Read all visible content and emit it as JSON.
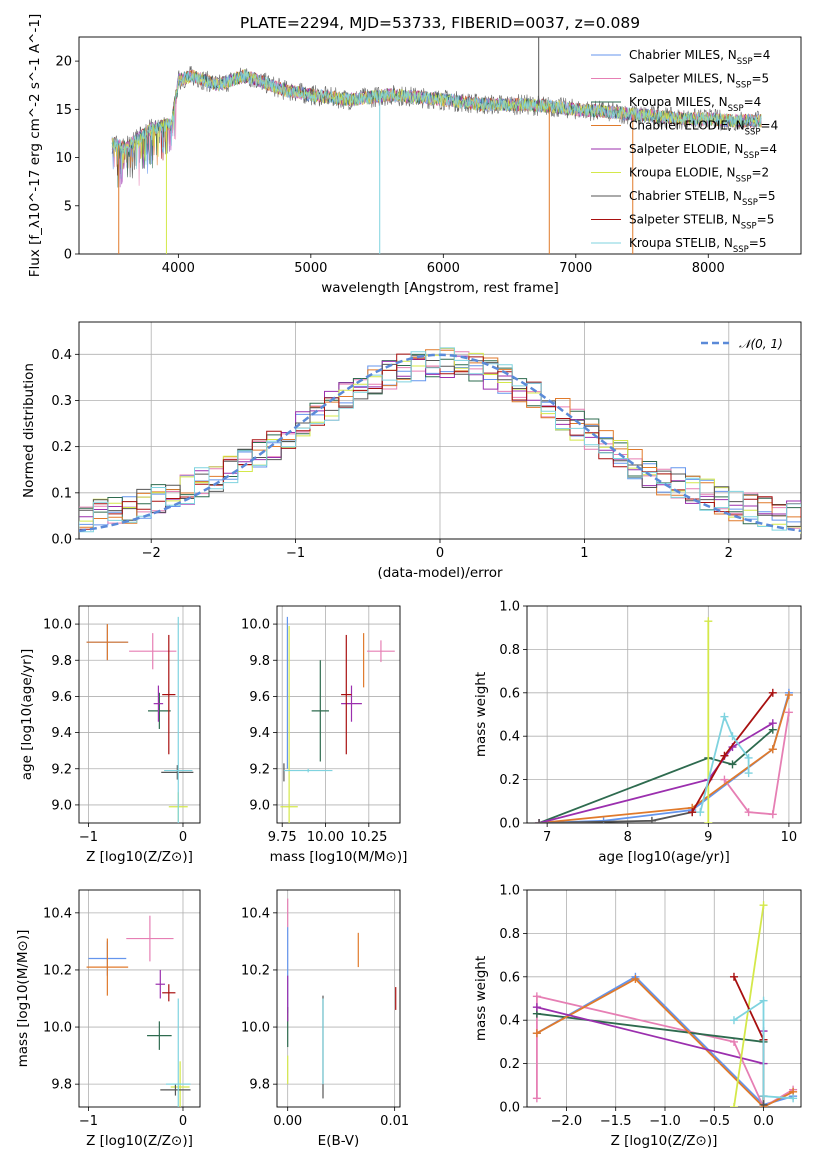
{
  "title": "PLATE=2294, MJD=53733, FIBERID=0037, z=0.089",
  "colors": {
    "Chabrier MILES": "#6495ed",
    "Salpeter MILES": "#e67fb4",
    "Kroupa MILES": "#2e6b4f",
    "Chabrier ELODIE": "#e07a2b",
    "Salpeter ELODIE": "#9b2fae",
    "Kroupa ELODIE": "#d4e84a",
    "Chabrier STELIB": "#555555",
    "Salpeter STELIB": "#a81010",
    "Kroupa STELIB": "#7fd3df"
  },
  "chart_data": [
    {
      "id": "spectrum",
      "type": "line",
      "title": "PLATE=2294, MJD=53733, FIBERID=0037, z=0.089",
      "xlabel": "wavelength [Angstrom, rest frame]",
      "ylabel": "Flux [f_λ10^-17 erg cm^-2 s^-1 A^-1]",
      "xlim": [
        3250,
        8700
      ],
      "ylim": [
        0,
        22.5
      ],
      "xticks": [
        4000,
        5000,
        6000,
        7000,
        8000
      ],
      "yticks": [
        0,
        5,
        10,
        15,
        20
      ],
      "legend_position": "top-right",
      "legend": [
        "Chabrier MILES, N_SSP=4",
        "Salpeter MILES, N_SSP=5",
        "Kroupa MILES, N_SSP=4",
        "Chabrier ELODIE, N_SSP=4",
        "Salpeter ELODIE, N_SSP=4",
        "Kroupa ELODIE, N_SSP=2",
        "Chabrier STELIB, N_SSP=5",
        "Salpeter STELIB, N_SSP=5",
        "Kroupa STELIB, N_SSP=5"
      ],
      "continuum": {
        "x": [
          3500,
          3600,
          3800,
          3950,
          4000,
          4100,
          4300,
          4500,
          4800,
          5000,
          5300,
          5600,
          6000,
          6300,
          6600,
          6800,
          7000,
          7200,
          7400,
          7600,
          7800,
          8000,
          8200,
          8400
        ],
        "y": [
          11.5,
          11,
          13,
          13.5,
          18,
          18.5,
          17.5,
          18.5,
          17,
          16.5,
          16,
          16.5,
          16,
          15.5,
          15.5,
          15.3,
          15,
          14.8,
          14.5,
          14.3,
          14,
          14,
          13.8,
          13.8
        ]
      },
      "features": [
        {
          "x": 3550,
          "y": 0,
          "series": "Chabrier ELODIE"
        },
        {
          "x": 3910,
          "y": 0,
          "series": "Kroupa ELODIE"
        },
        {
          "x": 5520,
          "y": 0,
          "series": "Kroupa STELIB"
        },
        {
          "x": 6800,
          "y": 0,
          "series": "Chabrier ELODIE"
        },
        {
          "x": 7430,
          "y": 0,
          "series": "Chabrier ELODIE"
        },
        {
          "x": 6720,
          "y": 22.5,
          "series": "Chabrier STELIB"
        }
      ]
    },
    {
      "id": "residuals",
      "type": "histogram",
      "xlabel": "(data-model)/error",
      "ylabel": "Normed distribution",
      "xlim": [
        -2.5,
        2.5
      ],
      "ylim": [
        0,
        0.47
      ],
      "xticks": [
        -2,
        -1,
        0,
        1,
        2
      ],
      "yticks": [
        0.0,
        0.1,
        0.2,
        0.3,
        0.4
      ],
      "legend": [
        "N(0,1)"
      ],
      "legend_position": "top-right",
      "bin_width": 0.1,
      "envelope": [
        0.02,
        0.06,
        0.12,
        0.22,
        0.32,
        0.37,
        0.37,
        0.32,
        0.22,
        0.12,
        0.06,
        0.02
      ],
      "gaussian": {
        "mean": 0,
        "sigma": 1
      }
    },
    {
      "id": "age_vs_Z",
      "type": "errorbar",
      "xlabel": "Z [log10(Z/Z⊙)]",
      "ylabel": "age [log10(age/yr)]",
      "xlim": [
        -1.1,
        0.18
      ],
      "ylim": [
        8.9,
        10.1
      ],
      "xticks": [
        -1,
        0
      ],
      "yticks": [
        9.0,
        9.2,
        9.4,
        9.6,
        9.8,
        10.0
      ],
      "points": [
        {
          "series": "Chabrier MILES",
          "x": -0.8,
          "y": 9.9,
          "xerr": 0.22,
          "yerr": 0.1
        },
        {
          "series": "Salpeter MILES",
          "x": -0.32,
          "y": 9.85,
          "xerr": 0.25,
          "yerr": 0.1
        },
        {
          "series": "Kroupa MILES",
          "x": -0.25,
          "y": 9.52,
          "xerr": 0.12,
          "yerr": 0.1
        },
        {
          "series": "Chabrier ELODIE",
          "x": -0.8,
          "y": 9.9,
          "xerr": 0.22,
          "yerr": 0.1
        },
        {
          "series": "Salpeter ELODIE",
          "x": -0.26,
          "y": 9.56,
          "xerr": 0.05,
          "yerr": 0.1
        },
        {
          "series": "Kroupa ELODIE",
          "x": -0.05,
          "y": 8.99,
          "xerr": 0.1,
          "yerr": 0.08
        },
        {
          "series": "Chabrier STELIB",
          "x": -0.06,
          "y": 9.18,
          "xerr": 0.17,
          "yerr": 0.04
        },
        {
          "series": "Salpeter STELIB",
          "x": -0.15,
          "y": 9.61,
          "xerr": 0.07,
          "yerr": 0.33
        },
        {
          "series": "Kroupa STELIB",
          "x": -0.05,
          "y": 9.19,
          "xerr": 0.15,
          "yerr": 0.85
        }
      ]
    },
    {
      "id": "age_vs_mass",
      "type": "errorbar",
      "xlabel": "mass [log10(M/M⊙)]",
      "ylabel": "",
      "xlim": [
        9.72,
        10.43
      ],
      "ylim": [
        8.9,
        10.1
      ],
      "xticks": [
        9.75,
        10.0,
        10.25
      ],
      "xticklabels": [
        "9.75",
        "10.00",
        "10.25"
      ],
      "yticks": [
        9.0,
        9.2,
        9.4,
        9.6,
        9.8,
        10.0
      ],
      "points": [
        {
          "series": "Chabrier MILES",
          "x": 9.78,
          "y": 9.62,
          "xerr": 0.0,
          "yerr": 0.42
        },
        {
          "series": "Salpeter MILES",
          "x": 10.32,
          "y": 9.85,
          "xerr": 0.08,
          "yerr": 0.06
        },
        {
          "series": "Kroupa MILES",
          "x": 9.97,
          "y": 9.52,
          "xerr": 0.05,
          "yerr": 0.28
        },
        {
          "series": "Chabrier ELODIE",
          "x": 10.22,
          "y": 9.8,
          "xerr": 0.0,
          "yerr": 0.15
        },
        {
          "series": "Salpeter ELODIE",
          "x": 10.15,
          "y": 9.56,
          "xerr": 0.06,
          "yerr": 0.1
        },
        {
          "series": "Kroupa ELODIE",
          "x": 9.79,
          "y": 8.99,
          "xerr": 0.05,
          "yerr": 1.0
        },
        {
          "series": "Chabrier STELIB",
          "x": 9.76,
          "y": 9.18,
          "xerr": 0.0,
          "yerr": 0.05
        },
        {
          "series": "Salpeter STELIB",
          "x": 10.12,
          "y": 9.61,
          "xerr": 0.03,
          "yerr": 0.33
        },
        {
          "series": "Kroupa STELIB",
          "x": 9.9,
          "y": 9.19,
          "xerr": 0.14,
          "yerr": 0.01
        }
      ]
    },
    {
      "id": "weight_vs_age",
      "type": "line",
      "xlabel": "age [log10(age/yr)]",
      "ylabel": "mass weight",
      "xlim": [
        6.75,
        10.15
      ],
      "ylim": [
        0,
        1
      ],
      "xticks": [
        7,
        8,
        9,
        10
      ],
      "yticks": [
        0.0,
        0.2,
        0.4,
        0.6,
        0.8,
        1.0
      ],
      "series": [
        {
          "name": "Chabrier MILES",
          "x": [
            6.9,
            7.7,
            8.8,
            9.8,
            10.0
          ],
          "y": [
            0.0,
            0.01,
            0.06,
            0.34,
            0.6
          ]
        },
        {
          "name": "Salpeter MILES",
          "x": [
            9.2,
            9.5,
            9.8,
            10.0
          ],
          "y": [
            0.2,
            0.05,
            0.04,
            0.51
          ]
        },
        {
          "name": "Kroupa MILES",
          "x": [
            6.9,
            9.0,
            9.3,
            9.8
          ],
          "y": [
            0.0,
            0.3,
            0.27,
            0.43
          ]
        },
        {
          "name": "Chabrier ELODIE",
          "x": [
            6.9,
            8.8,
            9.8,
            10.0
          ],
          "y": [
            0.0,
            0.07,
            0.34,
            0.59
          ]
        },
        {
          "name": "Salpeter ELODIE",
          "x": [
            6.9,
            9.0,
            9.3,
            9.8
          ],
          "y": [
            0.0,
            0.2,
            0.35,
            0.46
          ]
        },
        {
          "name": "Kroupa ELODIE",
          "x": [
            9.0,
            9.0
          ],
          "y": [
            0.0,
            0.93
          ]
        },
        {
          "name": "Chabrier STELIB",
          "x": [
            6.9,
            8.3,
            8.8
          ],
          "y": [
            0.0,
            0.01,
            0.05
          ]
        },
        {
          "name": "Salpeter STELIB",
          "x": [
            8.8,
            9.2,
            9.8
          ],
          "y": [
            0.05,
            0.31,
            0.6
          ]
        },
        {
          "name": "Kroupa STELIB",
          "x": [
            8.9,
            9.2,
            9.3,
            9.5,
            9.5
          ],
          "y": [
            0.05,
            0.49,
            0.4,
            0.3,
            0.23
          ]
        }
      ]
    },
    {
      "id": "mass_vs_Z",
      "type": "errorbar",
      "xlabel": "Z [log10(Z/Z⊙)]",
      "ylabel": "mass [log10(M/M⊙)]",
      "xlim": [
        -1.1,
        0.18
      ],
      "ylim": [
        9.72,
        10.48
      ],
      "xticks": [
        -1,
        0
      ],
      "yticks": [
        9.8,
        10.0,
        10.2,
        10.4
      ],
      "points": [
        {
          "series": "Chabrier MILES",
          "x": -0.8,
          "y": 10.24,
          "xerr": 0.2,
          "yerr": 0.06
        },
        {
          "series": "Salpeter MILES",
          "x": -0.35,
          "y": 10.31,
          "xerr": 0.25,
          "yerr": 0.08
        },
        {
          "series": "Kroupa MILES",
          "x": -0.25,
          "y": 9.97,
          "xerr": 0.13,
          "yerr": 0.05
        },
        {
          "series": "Chabrier ELODIE",
          "x": -0.8,
          "y": 10.21,
          "xerr": 0.22,
          "yerr": 0.1
        },
        {
          "series": "Salpeter ELODIE",
          "x": -0.24,
          "y": 10.15,
          "xerr": 0.05,
          "yerr": 0.05
        },
        {
          "series": "Kroupa ELODIE",
          "x": -0.03,
          "y": 9.79,
          "xerr": 0.1,
          "yerr": 0.09
        },
        {
          "series": "Chabrier STELIB",
          "x": -0.08,
          "y": 9.78,
          "xerr": 0.16,
          "yerr": 0.02
        },
        {
          "series": "Salpeter STELIB",
          "x": -0.15,
          "y": 10.12,
          "xerr": 0.07,
          "yerr": 0.03
        },
        {
          "series": "Kroupa STELIB",
          "x": -0.05,
          "y": 9.8,
          "xerr": 0.13,
          "yerr": 0.3
        }
      ]
    },
    {
      "id": "mass_vs_ebv",
      "type": "errorbar",
      "xlabel": "E(B-V)",
      "ylabel": "",
      "xlim": [
        -0.001,
        0.0105
      ],
      "ylim": [
        9.72,
        10.48
      ],
      "xticks": [
        0.0,
        0.01
      ],
      "xticklabels": [
        "0.00",
        "0.01"
      ],
      "yticks": [
        9.8,
        10.0,
        10.2,
        10.4
      ],
      "points": [
        {
          "series": "Chabrier MILES",
          "x": 0.0,
          "y": 10.2,
          "xerr": 0,
          "yerr": 0.15
        },
        {
          "series": "Salpeter MILES",
          "x": 0.0,
          "y": 10.4,
          "xerr": 0,
          "yerr": 0.05
        },
        {
          "series": "Kroupa MILES",
          "x": 0.0,
          "y": 10.0,
          "xerr": 0,
          "yerr": 0.07
        },
        {
          "series": "Chabrier ELODIE",
          "x": 0.0066,
          "y": 10.27,
          "xerr": 0,
          "yerr": 0.06
        },
        {
          "series": "Salpeter ELODIE",
          "x": 0.0,
          "y": 10.1,
          "xerr": 0,
          "yerr": 0.08
        },
        {
          "series": "Kroupa ELODIE",
          "x": 0.0,
          "y": 9.85,
          "xerr": 0,
          "yerr": 0.05
        },
        {
          "series": "Chabrier STELIB",
          "x": 0.0033,
          "y": 9.93,
          "xerr": 0,
          "yerr": 0.18
        },
        {
          "series": "Salpeter STELIB",
          "x": 0.0101,
          "y": 10.1,
          "xerr": 0,
          "yerr": 0.04
        },
        {
          "series": "Kroupa STELIB",
          "x": 0.0033,
          "y": 9.95,
          "xerr": 0,
          "yerr": 0.15
        }
      ]
    },
    {
      "id": "weight_vs_Z",
      "type": "line",
      "xlabel": "Z [log10(Z/Z⊙)]",
      "ylabel": "mass weight",
      "xlim": [
        -2.4,
        0.38
      ],
      "ylim": [
        0,
        1
      ],
      "xticks": [
        -2.0,
        -1.5,
        -1.0,
        -0.5,
        0.0
      ],
      "xticklabels": [
        "−2.0",
        "−1.5",
        "−1.0",
        "−0.5",
        "0.0"
      ],
      "yticks": [
        0.0,
        0.2,
        0.4,
        0.6,
        0.8,
        1.0
      ],
      "series": [
        {
          "name": "Chabrier MILES",
          "x": [
            -2.3,
            -1.3,
            0.0,
            0.3
          ],
          "y": [
            0.34,
            0.6,
            0.01,
            0.05
          ]
        },
        {
          "name": "Salpeter MILES",
          "x": [
            -2.3,
            -2.3,
            -0.3,
            0.0,
            0.3
          ],
          "y": [
            0.04,
            0.51,
            0.3,
            0.0,
            0.08
          ]
        },
        {
          "name": "Kroupa MILES",
          "x": [
            -2.3,
            0.0
          ],
          "y": [
            0.43,
            0.3
          ]
        },
        {
          "name": "Chabrier ELODIE",
          "x": [
            -2.3,
            -1.3,
            0.0,
            0.3
          ],
          "y": [
            0.34,
            0.59,
            0.0,
            0.07
          ]
        },
        {
          "name": "Salpeter ELODIE",
          "x": [
            -2.3,
            0.0,
            0.0
          ],
          "y": [
            0.46,
            0.2,
            0.35
          ]
        },
        {
          "name": "Kroupa ELODIE",
          "x": [
            -0.3,
            0.0
          ],
          "y": [
            0.0,
            0.93
          ]
        },
        {
          "name": "Chabrier STELIB",
          "x": [
            0.0,
            0.0
          ],
          "y": [
            0.01,
            0.05
          ]
        },
        {
          "name": "Salpeter STELIB",
          "x": [
            -0.3,
            0.0,
            0.0
          ],
          "y": [
            0.6,
            0.31,
            0.05
          ]
        },
        {
          "name": "Kroupa STELIB",
          "x": [
            -0.3,
            0.0,
            0.0,
            0.3
          ],
          "y": [
            0.4,
            0.49,
            0.05,
            0.04
          ]
        }
      ]
    }
  ]
}
